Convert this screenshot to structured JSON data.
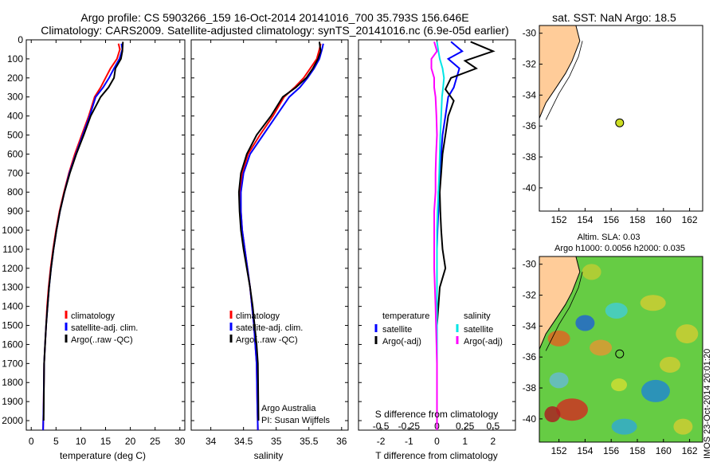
{
  "header": {
    "title_line1": "Argo profile: CS 5903266_159 16-Oct-2014 20141016_700 35.793S 156.646E",
    "title_line2": "Climatology: CARS2009. Satellite-adjusted climatology: synTS_20141016.nc (6.9e-05d earlier)"
  },
  "colors": {
    "climatology": "#ff0000",
    "satellite": "#0000ff",
    "argo": "#000000",
    "sal_sat": "#00e5e5",
    "sal_argo": "#ff00ff",
    "land": "#ffcc99",
    "marker": "#ccdd22"
  },
  "side": {
    "sst_title": "sat. SST: NaN Argo: 18.5",
    "sla_title1": "Altim. SLA: 0.03",
    "sla_title2": "Argo h1000: 0.0056 h2000: 0.035",
    "watermark": "IMOS 23-Oct-2014 20:01:20"
  },
  "credits": {
    "line1": "Argo Australia",
    "line2": "PI: Susan Wijffels"
  },
  "chart_data": [
    {
      "type": "line",
      "id": "temperature",
      "xlabel": "temperature (deg C)",
      "xlim": [
        -1,
        31
      ],
      "ylim": [
        2050,
        0
      ],
      "xticks": [
        0,
        5,
        10,
        15,
        20,
        25,
        30
      ],
      "yticks": [
        0,
        100,
        200,
        300,
        400,
        500,
        600,
        700,
        800,
        900,
        1000,
        1100,
        1200,
        1300,
        1400,
        1500,
        1600,
        1700,
        1800,
        1900,
        2000
      ],
      "legend": [
        "climatology",
        "satellite-adj. clim.",
        "Argo(..raw -QC)"
      ],
      "series": [
        {
          "name": "climatology",
          "color": "#ff0000",
          "x": [
            17.6,
            17.9,
            17.3,
            16.0,
            15.0,
            14.0,
            12.8,
            11.6,
            10.2,
            8.8,
            7.6,
            6.6,
            5.7,
            5.0,
            4.4,
            3.9,
            3.5,
            3.2,
            3.0,
            2.8,
            2.6,
            2.5,
            2.4
          ],
          "y": [
            20,
            50,
            100,
            150,
            200,
            250,
            300,
            400,
            500,
            600,
            700,
            800,
            900,
            1000,
            1100,
            1200,
            1300,
            1400,
            1500,
            1600,
            1700,
            1900,
            2050
          ]
        },
        {
          "name": "satellite-adj. clim.",
          "color": "#0000ff",
          "x": [
            18.2,
            18.4,
            17.8,
            16.7,
            15.7,
            14.5,
            13.0,
            11.8,
            10.4,
            9.0,
            7.7,
            6.7,
            5.8,
            5.1,
            4.5,
            4.0,
            3.6,
            3.3,
            3.0,
            2.8,
            2.6,
            2.5,
            2.4
          ],
          "y": [
            20,
            50,
            100,
            150,
            200,
            250,
            300,
            400,
            500,
            600,
            700,
            800,
            900,
            1000,
            1100,
            1200,
            1300,
            1400,
            1500,
            1600,
            1700,
            1900,
            2050
          ]
        },
        {
          "name": "Argo(..raw -QC)",
          "color": "#000000",
          "x": [
            18.5,
            18.4,
            18.1,
            17.0,
            16.7,
            15.6,
            14.0,
            12.0,
            10.6,
            9.1,
            7.8,
            6.7,
            5.8,
            5.1,
            4.5,
            4.0,
            3.6,
            3.3,
            3.0,
            2.8,
            2.6,
            2.5
          ],
          "y": [
            10,
            60,
            100,
            150,
            200,
            250,
            300,
            400,
            500,
            600,
            700,
            800,
            900,
            1000,
            1100,
            1200,
            1300,
            1400,
            1500,
            1600,
            1700,
            2000
          ]
        }
      ]
    },
    {
      "type": "line",
      "id": "salinity",
      "xlabel": "salinity",
      "xlim": [
        33.7,
        36.1
      ],
      "ylim": [
        2050,
        0
      ],
      "xticks": [
        34,
        34.5,
        35,
        35.5,
        36
      ],
      "xtick_labels": [
        "34",
        "34.5",
        "35",
        "35.5",
        "36"
      ],
      "yticks": [
        0,
        200,
        400,
        600,
        800,
        1000,
        1200,
        1400,
        1600,
        1800,
        2000
      ],
      "legend": [
        "climatology",
        "satellite-adj. clim.",
        "Argo(..raw -QC)"
      ],
      "series": [
        {
          "name": "climatology",
          "color": "#ff0000",
          "x": [
            35.68,
            35.66,
            35.62,
            35.52,
            35.42,
            35.28,
            35.12,
            34.95,
            34.75,
            34.57,
            34.48,
            34.45,
            34.46,
            34.48,
            34.52,
            34.56,
            34.6,
            34.63,
            34.66,
            34.68,
            34.7,
            34.71,
            34.72
          ],
          "y": [
            20,
            50,
            100,
            150,
            200,
            250,
            300,
            400,
            500,
            600,
            700,
            800,
            900,
            1000,
            1100,
            1200,
            1300,
            1400,
            1500,
            1600,
            1700,
            1900,
            2050
          ]
        },
        {
          "name": "satellite-adj. clim.",
          "color": "#0000ff",
          "x": [
            35.72,
            35.7,
            35.66,
            35.58,
            35.48,
            35.36,
            35.2,
            35.0,
            34.8,
            34.6,
            34.5,
            34.46,
            34.46,
            34.48,
            34.52,
            34.56,
            34.6,
            34.63,
            34.66,
            34.68,
            34.7,
            34.71,
            34.72
          ],
          "y": [
            20,
            50,
            100,
            150,
            200,
            250,
            300,
            400,
            500,
            600,
            700,
            800,
            900,
            1000,
            1100,
            1200,
            1300,
            1400,
            1500,
            1600,
            1700,
            1900,
            2050
          ]
        },
        {
          "name": "Argo(..raw -QC)",
          "color": "#000000",
          "x": [
            35.66,
            35.68,
            35.64,
            35.56,
            35.46,
            35.3,
            35.1,
            34.92,
            34.7,
            34.55,
            34.46,
            34.43,
            34.44,
            34.46,
            34.5,
            34.55,
            34.6,
            34.64,
            34.67,
            34.7,
            34.72,
            34.73
          ],
          "y": [
            10,
            60,
            100,
            150,
            200,
            250,
            300,
            400,
            500,
            600,
            700,
            800,
            900,
            1000,
            1100,
            1200,
            1300,
            1400,
            1500,
            1600,
            1700,
            2000
          ]
        }
      ]
    },
    {
      "type": "line",
      "id": "difference",
      "xlabel": "T difference from climatology",
      "xlabel_top": "S difference from climatology",
      "xlim": [
        -2.8,
        2.8
      ],
      "ylim": [
        2050,
        0
      ],
      "xticks": [
        -2,
        -1,
        0,
        1,
        2
      ],
      "xticks_s": [
        -0.5,
        -0.25,
        0,
        0.25,
        0.5
      ],
      "xtick_labels_s": [
        "-0.5",
        "-0.25",
        "0",
        "0.25",
        "0.5"
      ],
      "legend_headers": [
        "temperature",
        "salinity"
      ],
      "legend": [
        "satellite",
        "Argo(-adj)",
        "satellite",
        "Argo(-adj)"
      ],
      "series": [
        {
          "name": "satellite",
          "color": "#0000ff",
          "x": [
            0.5,
            0.9,
            0.4,
            0.8,
            0.7,
            0.6,
            0.4,
            0.3,
            0.2,
            0.15,
            0.1,
            0.05,
            0.05,
            0.02,
            0.0,
            0.0,
            0.0,
            0.0,
            0.0,
            0.0,
            0.0,
            0.0
          ],
          "y": [
            10,
            60,
            100,
            150,
            200,
            250,
            300,
            400,
            500,
            600,
            700,
            800,
            900,
            1000,
            1100,
            1200,
            1300,
            1400,
            1500,
            1600,
            1700,
            2050
          ]
        },
        {
          "name": "Argo(-adj)",
          "color": "#000000",
          "x": [
            1.2,
            2.0,
            1.0,
            1.4,
            0.5,
            0.3,
            0.6,
            0.4,
            0.3,
            0.2,
            0.15,
            0.1,
            0.12,
            0.15,
            0.2,
            0.3,
            0.1,
            0.05,
            0.0,
            0.0,
            0.0,
            0.0
          ],
          "y": [
            10,
            60,
            110,
            150,
            200,
            260,
            320,
            400,
            500,
            600,
            700,
            800,
            900,
            1000,
            1100,
            1200,
            1300,
            1400,
            1500,
            1600,
            1700,
            2050
          ]
        },
        {
          "name": "satellite",
          "color": "#00e5e5",
          "x": [
            0.0,
            0.05,
            0.1,
            0.2,
            0.25,
            0.22,
            0.18,
            0.15,
            0.12,
            0.1,
            0.08,
            0.05,
            0.02,
            0.0,
            0.0,
            0.0,
            0.0,
            0.0,
            0.0
          ],
          "y": [
            10,
            60,
            100,
            150,
            200,
            250,
            300,
            400,
            500,
            600,
            700,
            800,
            900,
            1000,
            1100,
            1200,
            1400,
            1700,
            2050
          ]
        },
        {
          "name": "Argo(-adj)",
          "color": "#ff00ff",
          "x": [
            -0.1,
            0.0,
            -0.2,
            -0.2,
            -0.1,
            -0.1,
            -0.05,
            -0.02,
            0.0,
            -0.03,
            -0.05,
            -0.05,
            -0.1,
            -0.1,
            -0.1,
            -0.1,
            -0.05,
            0.0,
            0.0
          ],
          "y": [
            10,
            60,
            100,
            150,
            200,
            250,
            300,
            400,
            500,
            600,
            700,
            800,
            900,
            1000,
            1100,
            1200,
            1400,
            1700,
            2050
          ]
        }
      ]
    },
    {
      "type": "scatter",
      "id": "sst-map",
      "xlim": [
        150.5,
        163
      ],
      "ylim": [
        -41.5,
        -29.5
      ],
      "xticks": [
        152,
        154,
        156,
        158,
        160,
        162
      ],
      "yticks": [
        -30,
        -32,
        -34,
        -36,
        -38,
        -40
      ],
      "point": {
        "lon": 156.646,
        "lat": -35.793
      }
    },
    {
      "type": "heatmap",
      "id": "sla-map",
      "xlim": [
        150.5,
        163
      ],
      "ylim": [
        -41.5,
        -29.5
      ],
      "xticks": [
        152,
        154,
        156,
        158,
        160,
        162
      ],
      "yticks": [
        -30,
        -32,
        -34,
        -36,
        -38,
        -40
      ],
      "point": {
        "lon": 156.646,
        "lat": -35.793
      }
    }
  ]
}
